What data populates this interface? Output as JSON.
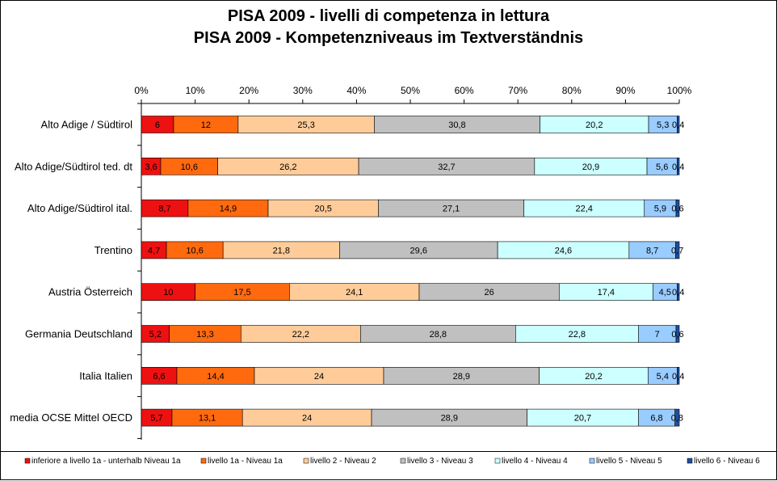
{
  "chart_data": {
    "type": "bar",
    "orientation": "horizontal",
    "stacked": "percent",
    "title": "PISA 2009 - livelli di competenza in lettura",
    "subtitle": "PISA 2009 - Kompetenzniveaus im Textverständnis",
    "xlim": [
      0,
      100
    ],
    "x_ticks": [
      "0%",
      "10%",
      "20%",
      "30%",
      "40%",
      "50%",
      "60%",
      "70%",
      "80%",
      "90%",
      "100%"
    ],
    "x_axis_position": "top",
    "grid": false,
    "legend_position": "bottom",
    "categories": [
      "Alto Adige / Südtirol",
      "Alto Adige/Südtirol ted. dt",
      "Alto Adige/Südtirol ital.",
      "Trentino",
      "Austria Österreich",
      "Germania Deutschland",
      "Italia Italien",
      "media OCSE Mittel OECD"
    ],
    "series": [
      {
        "name": "inferiore a livello 1a - unterhalb Niveau 1a",
        "color": "#ee1111",
        "values": [
          6,
          3.6,
          8.7,
          4.7,
          10,
          5.2,
          6.6,
          5.7
        ],
        "labels": [
          "6",
          "3,6",
          "8,7",
          "4,7",
          "10",
          "5,2",
          "6,6",
          "5,7"
        ]
      },
      {
        "name": "livello 1a - Niveau 1a",
        "color": "#ff6a0e",
        "values": [
          12,
          10.6,
          14.9,
          10.6,
          17.5,
          13.3,
          14.4,
          13.1
        ],
        "labels": [
          "12",
          "10,6",
          "14,9",
          "10,6",
          "17,5",
          "13,3",
          "14,4",
          "13,1"
        ]
      },
      {
        "name": "livello 2 - Niveau 2",
        "color": "#ffcc99",
        "values": [
          25.3,
          26.2,
          20.5,
          21.8,
          24.1,
          22.2,
          24,
          24
        ],
        "labels": [
          "25,3",
          "26,2",
          "20,5",
          "21,8",
          "24,1",
          "22,2",
          "24",
          "24"
        ]
      },
      {
        "name": "livello 3 - Niveau 3",
        "color": "#c0c0c0",
        "values": [
          30.8,
          32.7,
          27.1,
          29.6,
          26,
          28.8,
          28.9,
          28.9
        ],
        "labels": [
          "30,8",
          "32,7",
          "27,1",
          "29,6",
          "26",
          "28,8",
          "28,9",
          "28,9"
        ]
      },
      {
        "name": "livello 4 - Niveau 4",
        "color": "#ccffff",
        "values": [
          20.2,
          20.9,
          22.4,
          24.6,
          17.4,
          22.8,
          20.2,
          20.7
        ],
        "labels": [
          "20,2",
          "20,9",
          "22,4",
          "24,6",
          "17,4",
          "22,8",
          "20,2",
          "20,7"
        ]
      },
      {
        "name": "livello 5 - Niveau 5",
        "color": "#99ccff",
        "values": [
          5.3,
          5.6,
          5.9,
          8.7,
          4.5,
          7,
          5.4,
          6.8
        ],
        "labels": [
          "5,3",
          "5,6",
          "5,9",
          "8,7",
          "4,5",
          "7",
          "5,4",
          "6,8"
        ]
      },
      {
        "name": "livello 6 - Niveau 6",
        "color": "#1f4fa0",
        "values": [
          0.4,
          0.4,
          0.6,
          0.7,
          0.4,
          0.6,
          0.4,
          0.8
        ],
        "labels": [
          "0,4",
          "0,4",
          "0,6",
          "0,7",
          "0,4",
          "0,6",
          "0,4",
          "0,8"
        ]
      }
    ]
  }
}
